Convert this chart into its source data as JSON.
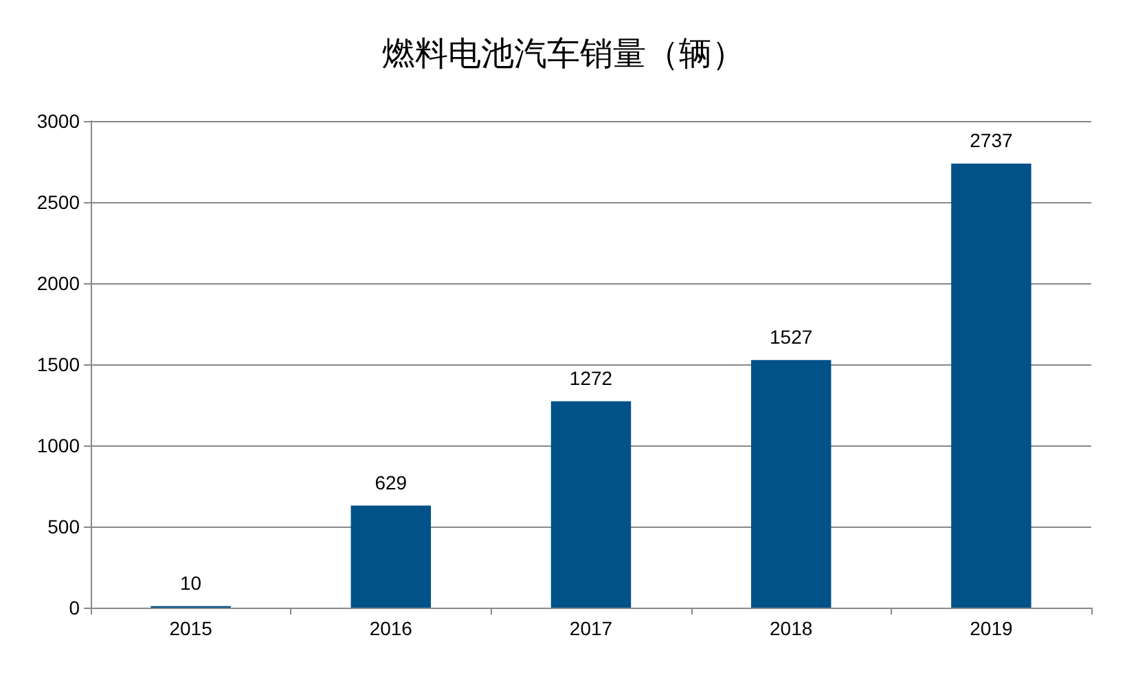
{
  "chart_data": {
    "type": "bar",
    "title": "燃料电池汽车销量（辆）",
    "categories": [
      "2015",
      "2016",
      "2017",
      "2018",
      "2019"
    ],
    "values": [
      10,
      629,
      1272,
      1527,
      2737
    ],
    "color": "#005288",
    "ylim": [
      0,
      3000
    ],
    "yticks": [
      0,
      500,
      1000,
      1500,
      2000,
      2500,
      3000
    ],
    "grid": "y",
    "data_labels": true
  }
}
